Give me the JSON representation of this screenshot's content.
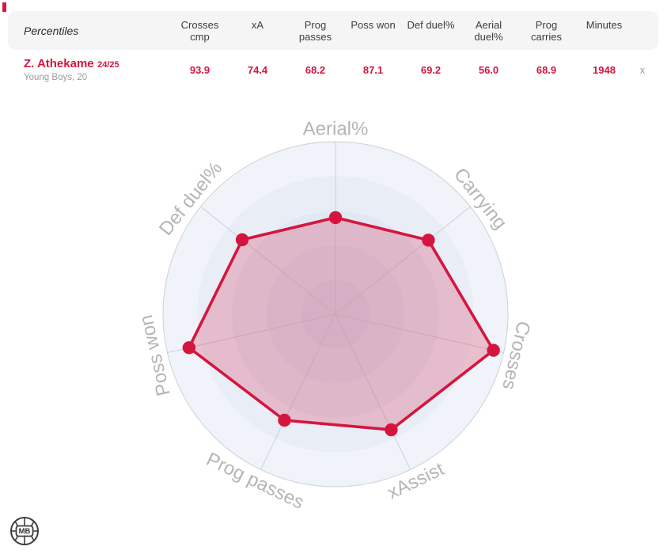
{
  "accent_color": "#d4163f",
  "top_marker": {
    "color": "#d4163f"
  },
  "table": {
    "corner_label": "Percentiles",
    "columns": [
      {
        "lines": [
          "Crosses",
          "cmp"
        ]
      },
      {
        "lines": [
          "xA"
        ]
      },
      {
        "lines": [
          "Prog",
          "passes"
        ]
      },
      {
        "lines": [
          "Poss won"
        ]
      },
      {
        "lines": [
          "Def duel%"
        ]
      },
      {
        "lines": [
          "Aerial",
          "duel%"
        ]
      },
      {
        "lines": [
          "Prog",
          "carries"
        ]
      },
      {
        "lines": [
          "Minutes"
        ]
      }
    ],
    "row": {
      "name": "Z. Athekame",
      "season": "24/25",
      "meta": "Young Boys, 20",
      "values": [
        "93.9",
        "74.4",
        "68.2",
        "87.1",
        "69.2",
        "56.0",
        "68.9",
        "1948"
      ],
      "close_icon": "x"
    }
  },
  "chart_data": {
    "type": "radar",
    "title": "",
    "axes": [
      "Aerial%",
      "Carrying",
      "Crosses",
      "xAssist",
      "Prog passes",
      "Poss won",
      "Def duel%"
    ],
    "series": [
      {
        "name": "Z. Athekame 24/25",
        "values": [
          56.0,
          68.9,
          93.9,
          74.4,
          68.2,
          87.1,
          69.2
        ]
      }
    ],
    "scale": {
      "min": 0,
      "max": 100
    },
    "legend": "none",
    "grid": {
      "rings": 5,
      "ring_colors": [
        "#f0f3f9",
        "#e9eef6",
        "#e2e8f3",
        "#dce3f0",
        "#d7deed"
      ],
      "line_color": "#ccd1d9"
    },
    "series_style": {
      "stroke": "#d4163f",
      "stroke_width": 3.6,
      "fill_opacity": 0.23,
      "point_radius": 8.2,
      "label_color": "#b5b5b5",
      "label_size": 24
    }
  },
  "logo": {
    "text": "MB"
  }
}
